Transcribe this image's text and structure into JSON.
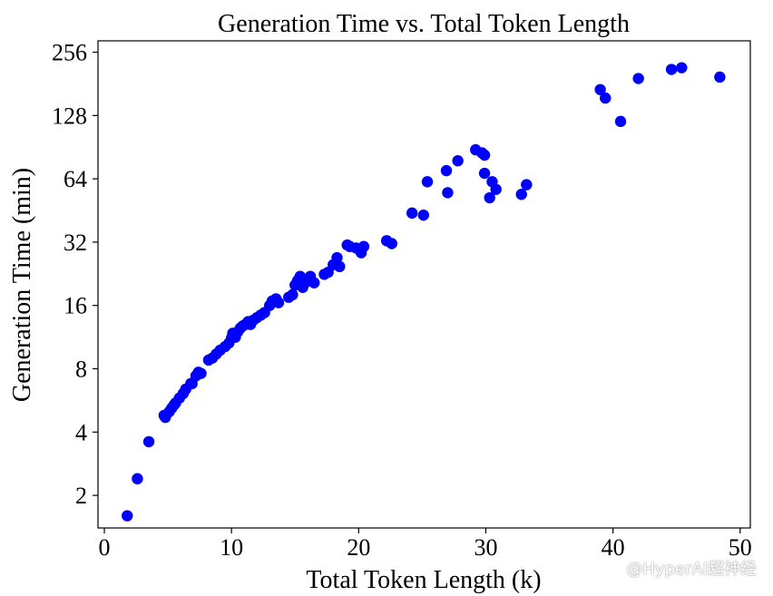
{
  "chart_data": {
    "type": "scatter",
    "title": "Generation Time vs. Total Token Length",
    "xlabel": "Total Token Length (k)",
    "ylabel": "Generation Time (min)",
    "xlim": [
      -0.5,
      50.8
    ],
    "ylim": [
      1.4,
      290
    ],
    "yscale": "log2",
    "xticks": [
      0,
      10,
      20,
      30,
      40,
      50
    ],
    "yticks": [
      2,
      4,
      8,
      16,
      32,
      64,
      128,
      256
    ],
    "grid": false,
    "legend": "none",
    "marker_color": "#0000ff",
    "points": [
      [
        1.8,
        1.6
      ],
      [
        2.6,
        2.4
      ],
      [
        3.5,
        3.6
      ],
      [
        4.7,
        4.8
      ],
      [
        4.8,
        4.7
      ],
      [
        5.1,
        5.0
      ],
      [
        5.3,
        5.2
      ],
      [
        5.5,
        5.4
      ],
      [
        5.6,
        5.5
      ],
      [
        5.9,
        5.8
      ],
      [
        6.2,
        6.1
      ],
      [
        6.4,
        6.4
      ],
      [
        6.8,
        6.8
      ],
      [
        6.9,
        6.8
      ],
      [
        7.2,
        7.4
      ],
      [
        7.4,
        7.7
      ],
      [
        7.6,
        7.6
      ],
      [
        8.2,
        8.8
      ],
      [
        8.5,
        9.0
      ],
      [
        8.8,
        9.4
      ],
      [
        9.1,
        9.8
      ],
      [
        9.5,
        10.2
      ],
      [
        9.8,
        10.6
      ],
      [
        10.0,
        11.2
      ],
      [
        10.1,
        11.8
      ],
      [
        10.3,
        11.3
      ],
      [
        10.5,
        12.0
      ],
      [
        10.7,
        12.5
      ],
      [
        10.9,
        12.8
      ],
      [
        11.1,
        13.0
      ],
      [
        11.3,
        13.4
      ],
      [
        11.5,
        13.0
      ],
      [
        11.7,
        13.6
      ],
      [
        12.0,
        14.0
      ],
      [
        12.3,
        14.4
      ],
      [
        12.6,
        14.8
      ],
      [
        13.0,
        16.0
      ],
      [
        13.2,
        16.8
      ],
      [
        13.5,
        17.2
      ],
      [
        13.7,
        16.5
      ],
      [
        14.5,
        17.5
      ],
      [
        14.8,
        18.0
      ],
      [
        15.0,
        20.0
      ],
      [
        15.2,
        21.0
      ],
      [
        15.4,
        22.0
      ],
      [
        15.6,
        19.5
      ],
      [
        15.8,
        20.5
      ],
      [
        16.0,
        21.0
      ],
      [
        16.2,
        22.0
      ],
      [
        16.5,
        20.5
      ],
      [
        17.3,
        22.5
      ],
      [
        17.6,
        23.0
      ],
      [
        18.0,
        25.0
      ],
      [
        18.3,
        27.0
      ],
      [
        18.5,
        24.5
      ],
      [
        19.1,
        31.0
      ],
      [
        19.3,
        30.5
      ],
      [
        19.8,
        30.0
      ],
      [
        20.2,
        28.5
      ],
      [
        20.4,
        30.5
      ],
      [
        22.2,
        32.5
      ],
      [
        22.6,
        31.5
      ],
      [
        24.2,
        44.0
      ],
      [
        25.1,
        43.0
      ],
      [
        25.4,
        62.0
      ],
      [
        26.9,
        70.0
      ],
      [
        27.0,
        55.0
      ],
      [
        27.8,
        78.0
      ],
      [
        29.2,
        88.0
      ],
      [
        29.7,
        85.0
      ],
      [
        29.9,
        83.0
      ],
      [
        29.9,
        68.0
      ],
      [
        30.3,
        52.0
      ],
      [
        30.5,
        62.0
      ],
      [
        30.8,
        57.0
      ],
      [
        32.8,
        54.0
      ],
      [
        33.2,
        60.0
      ],
      [
        39.0,
        170.0
      ],
      [
        39.4,
        155.0
      ],
      [
        40.6,
        120.0
      ],
      [
        42.0,
        192.0
      ],
      [
        44.6,
        212.0
      ],
      [
        45.4,
        216.0
      ],
      [
        48.4,
        195.0
      ]
    ]
  },
  "watermark": "@HyperAI超神经"
}
